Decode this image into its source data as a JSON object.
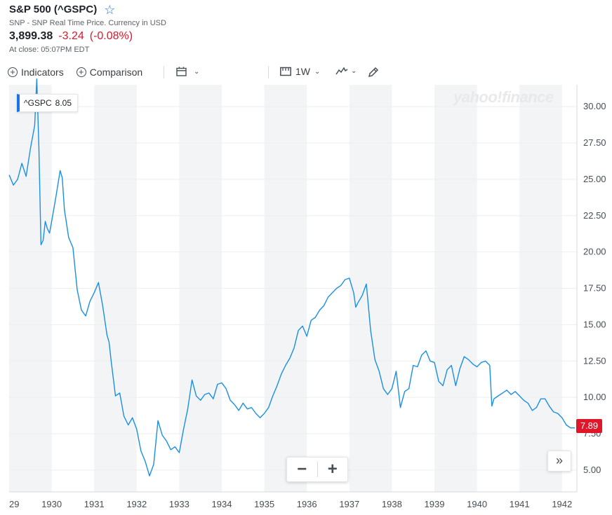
{
  "header": {
    "title": "S&P 500 (^GSPC)",
    "subtitle": "SNP - SNP Real Time Price. Currency in USD",
    "price": "3,899.38",
    "change": "-3.24",
    "change_pct": "(-0.08%)",
    "close_time": "At close: 05:07PM EDT"
  },
  "toolbar": {
    "indicators_label": "Indicators",
    "comparison_label": "Comparison",
    "interval_label": "1W"
  },
  "watermark": "yahoo!finance",
  "tooltip": {
    "symbol": "^GSPC",
    "value": "8.05"
  },
  "last_price_badge": "7.89",
  "colors": {
    "line": "#1a8fe3",
    "negative": "#e0162b",
    "accent": "#1a73e8"
  },
  "chart_data": {
    "type": "line",
    "title": "S&P 500 (^GSPC)",
    "xlabel": "",
    "ylabel": "",
    "x_ticks": [
      "29",
      "1930",
      "1931",
      "1932",
      "1933",
      "1934",
      "1935",
      "1936",
      "1937",
      "1938",
      "1939",
      "1940",
      "1941",
      "1942"
    ],
    "y_ticks": [
      "5.00",
      "7.50",
      "10.00",
      "12.50",
      "15.00",
      "17.50",
      "20.00",
      "22.50",
      "25.00",
      "27.50",
      "30.00"
    ],
    "ylim": [
      3.5,
      31.5
    ],
    "xlim": [
      1929.0,
      1942.35
    ],
    "series": [
      {
        "name": "^GSPC",
        "x": [
          1929.0,
          1929.1,
          1929.2,
          1929.3,
          1929.4,
          1929.5,
          1929.6,
          1929.65,
          1929.7,
          1929.75,
          1929.8,
          1929.85,
          1929.9,
          1929.95,
          1930.0,
          1930.1,
          1930.2,
          1930.25,
          1930.3,
          1930.4,
          1930.5,
          1930.6,
          1930.7,
          1930.8,
          1930.9,
          1931.0,
          1931.1,
          1931.2,
          1931.3,
          1931.35,
          1931.4,
          1931.5,
          1931.6,
          1931.7,
          1931.8,
          1931.9,
          1932.0,
          1932.1,
          1932.2,
          1932.3,
          1932.4,
          1932.5,
          1932.6,
          1932.7,
          1932.8,
          1932.9,
          1933.0,
          1933.1,
          1933.2,
          1933.3,
          1933.4,
          1933.5,
          1933.6,
          1933.7,
          1933.8,
          1933.9,
          1934.0,
          1934.1,
          1934.2,
          1934.3,
          1934.4,
          1934.5,
          1934.6,
          1934.7,
          1934.8,
          1934.9,
          1935.0,
          1935.1,
          1935.2,
          1935.3,
          1935.4,
          1935.5,
          1935.6,
          1935.7,
          1935.8,
          1935.9,
          1936.0,
          1936.1,
          1936.2,
          1936.3,
          1936.4,
          1936.5,
          1936.6,
          1936.7,
          1936.8,
          1936.9,
          1937.0,
          1937.1,
          1937.15,
          1937.2,
          1937.3,
          1937.4,
          1937.5,
          1937.6,
          1937.7,
          1937.8,
          1937.9,
          1938.0,
          1938.1,
          1938.2,
          1938.3,
          1938.4,
          1938.5,
          1938.6,
          1938.7,
          1938.8,
          1938.9,
          1939.0,
          1939.1,
          1939.2,
          1939.3,
          1939.4,
          1939.5,
          1939.6,
          1939.7,
          1939.8,
          1939.9,
          1940.0,
          1940.1,
          1940.2,
          1940.3,
          1940.35,
          1940.4,
          1940.5,
          1940.6,
          1940.7,
          1940.8,
          1940.9,
          1941.0,
          1941.1,
          1941.2,
          1941.3,
          1941.4,
          1941.5,
          1941.6,
          1941.7,
          1941.8,
          1941.9,
          1942.0,
          1942.1,
          1942.2,
          1942.3
        ],
        "values": [
          25.3,
          24.6,
          25.0,
          26.1,
          25.2,
          27.1,
          28.7,
          31.9,
          27.2,
          20.5,
          20.8,
          22.1,
          21.6,
          21.3,
          22.1,
          23.8,
          25.6,
          25.1,
          22.9,
          21.0,
          20.3,
          17.4,
          16.0,
          15.6,
          16.6,
          17.2,
          17.9,
          16.3,
          14.3,
          13.8,
          12.5,
          10.1,
          10.3,
          8.7,
          8.1,
          8.6,
          7.8,
          6.3,
          5.6,
          4.6,
          5.4,
          8.4,
          7.4,
          7.0,
          6.4,
          6.6,
          6.2,
          7.8,
          9.2,
          11.2,
          10.1,
          9.8,
          10.2,
          10.3,
          9.9,
          10.9,
          11.0,
          10.6,
          9.8,
          9.5,
          9.1,
          9.6,
          9.2,
          9.3,
          8.9,
          8.6,
          8.9,
          9.3,
          10.1,
          10.8,
          11.6,
          12.2,
          12.7,
          13.4,
          14.6,
          14.9,
          14.2,
          15.3,
          15.5,
          16.0,
          16.3,
          16.9,
          17.2,
          17.5,
          17.7,
          18.1,
          18.2,
          17.2,
          16.2,
          16.5,
          17.0,
          17.8,
          14.6,
          12.6,
          11.8,
          10.6,
          10.2,
          10.6,
          11.8,
          9.3,
          10.4,
          10.6,
          12.2,
          12.1,
          12.9,
          13.2,
          12.5,
          12.4,
          11.1,
          10.8,
          11.9,
          12.2,
          10.8,
          12.0,
          12.8,
          12.6,
          12.3,
          12.1,
          12.4,
          12.5,
          12.2,
          9.4,
          9.9,
          10.1,
          10.3,
          10.5,
          10.2,
          10.4,
          10.1,
          9.8,
          9.6,
          9.1,
          9.3,
          9.9,
          9.9,
          9.4,
          9.0,
          8.9,
          8.6,
          8.1,
          7.9,
          7.9
        ]
      }
    ]
  }
}
